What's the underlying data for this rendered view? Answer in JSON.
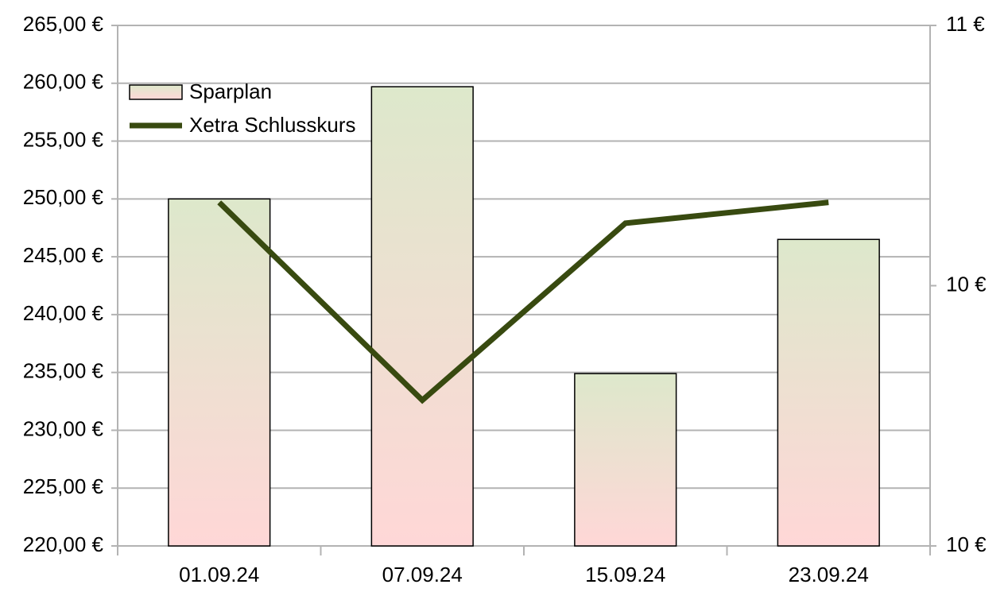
{
  "chart_data": {
    "type": "bar-line",
    "categories": [
      "01.09.24",
      "07.09.24",
      "15.09.24",
      "23.09.24"
    ],
    "series": [
      {
        "name": "Sparplan",
        "type": "bar",
        "color": "#e8dfcc",
        "gradient": [
          "#dde8cb",
          "#ffd7d7"
        ],
        "values": [
          250.0,
          259.7,
          234.9,
          246.5
        ]
      },
      {
        "name": "Xetra Schlusskurs",
        "type": "line",
        "axis": "y2",
        "color": "#384a10",
        "values": [
          10.16,
          9.78,
          10.12,
          10.16
        ]
      }
    ],
    "ylim": [
      220,
      265
    ],
    "yticks": [
      {
        "value": 220,
        "label": "220,00 €"
      },
      {
        "value": 225,
        "label": "225,00 €"
      },
      {
        "value": 230,
        "label": "230,00 €"
      },
      {
        "value": 235,
        "label": "235,00 €"
      },
      {
        "value": 240,
        "label": "240,00 €"
      },
      {
        "value": 245,
        "label": "245,00 €"
      },
      {
        "value": 250,
        "label": "250,00 €"
      },
      {
        "value": 255,
        "label": "255,00 €"
      },
      {
        "value": 260,
        "label": "260,00 €"
      },
      {
        "value": 265,
        "label": "265,00 €"
      }
    ],
    "y2lim": [
      9.5,
      10.5
    ],
    "y2ticks": [
      {
        "value": 9.5,
        "label": "10 €"
      },
      {
        "value": 10,
        "label": "10 €"
      },
      {
        "value": 10.5,
        "label": "11 €"
      }
    ],
    "grid": true,
    "legend": "top-left"
  }
}
